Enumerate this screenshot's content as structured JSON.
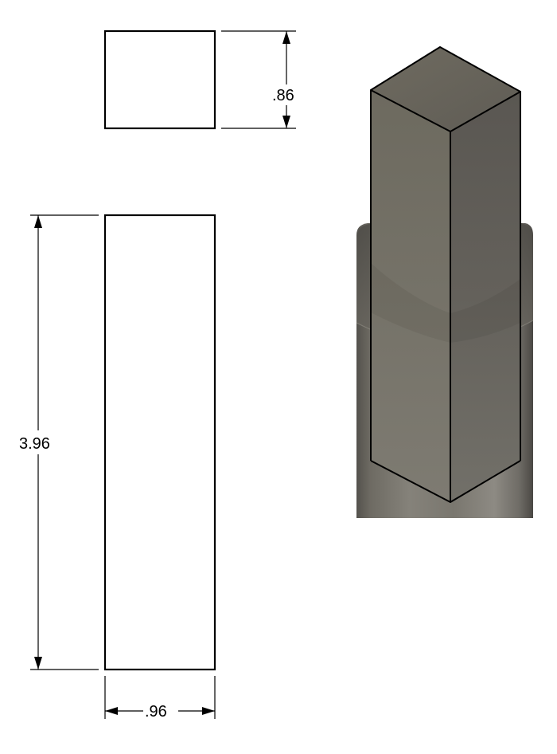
{
  "dimensions": {
    "top_view_height": ".86",
    "front_view_height": "3.96",
    "front_view_width": ".96"
  },
  "colors": {
    "line": "#000000",
    "background": "#ffffff",
    "model_top_face": "#6a665b",
    "model_left_face": "#77746a",
    "model_right_face": "#5a5751",
    "cylinder_base": "#5e5b54"
  }
}
